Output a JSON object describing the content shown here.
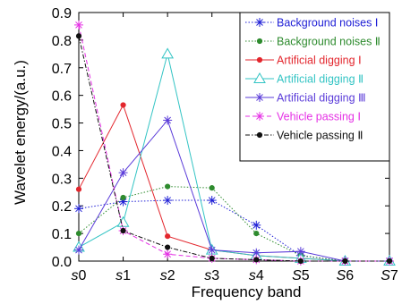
{
  "chart_data": {
    "type": "line",
    "xlabel": "Frequency band",
    "ylabel": "Wavelet energy/(a.u.)",
    "categories": [
      {
        "italic": "s",
        "rest": "0"
      },
      {
        "italic": "s",
        "rest": "1"
      },
      {
        "italic": "s",
        "rest": "2"
      },
      {
        "italic": "s",
        "rest": "3"
      },
      {
        "italic": "s",
        "rest": "4"
      },
      {
        "italic": "S",
        "rest": "5"
      },
      {
        "italic": "S",
        "rest": "6"
      },
      {
        "italic": "S",
        "rest": "7"
      }
    ],
    "ylim": [
      0,
      0.9
    ],
    "yticks": [
      "0.0",
      "0.1",
      "0.2",
      "0.3",
      "0.4",
      "0.5",
      "0.6",
      "0.7",
      "0.8",
      "0.9"
    ],
    "grid": false,
    "legend_position": "top-right",
    "series": [
      {
        "name": "Background noises Ⅰ",
        "color": "#1f1fd6",
        "marker": "asterisk",
        "dash": "dotted",
        "values": [
          0.19,
          0.215,
          0.22,
          0.22,
          0.13,
          0.02,
          0.0,
          0.0
        ]
      },
      {
        "name": "Background noises Ⅱ",
        "color": "#2e8b2e",
        "marker": "dot",
        "dash": "dotted",
        "values": [
          0.1,
          0.23,
          0.27,
          0.265,
          0.1,
          0.02,
          0.0,
          0.0
        ]
      },
      {
        "name": "Artificial digging Ⅰ",
        "color": "#e3262d",
        "marker": "dot",
        "dash": "solid",
        "values": [
          0.26,
          0.565,
          0.09,
          0.04,
          0.02,
          0.01,
          0.0,
          0.0
        ]
      },
      {
        "name": "Artificial digging Ⅱ",
        "color": "#33c4c4",
        "marker": "triangle",
        "dash": "solid",
        "values": [
          0.05,
          0.14,
          0.75,
          0.04,
          0.02,
          0.01,
          0.0,
          0.0
        ]
      },
      {
        "name": "Artificial digging Ⅲ",
        "color": "#5a3bd9",
        "marker": "asterisk",
        "dash": "solid",
        "values": [
          0.04,
          0.32,
          0.51,
          0.04,
          0.03,
          0.035,
          0.0,
          0.0
        ]
      },
      {
        "name": "Vehicle passing Ⅰ",
        "color": "#e531e5",
        "marker": "asterisk",
        "dash": "dashed",
        "values": [
          0.855,
          0.11,
          0.025,
          0.01,
          0.005,
          0.0,
          0.0,
          0.0
        ]
      },
      {
        "name": "Vehicle passing Ⅱ",
        "color": "#111111",
        "marker": "dot",
        "dash": "dashdot",
        "values": [
          0.815,
          0.11,
          0.05,
          0.01,
          0.005,
          0.0,
          0.0,
          0.0
        ]
      }
    ]
  }
}
